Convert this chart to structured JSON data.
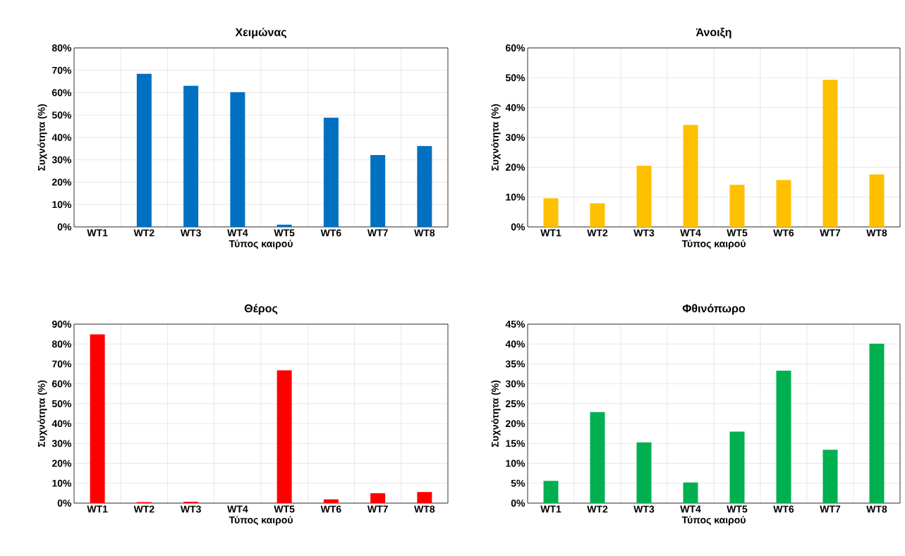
{
  "chart_data": [
    {
      "type": "bar",
      "title": "Χειμώνας",
      "xlabel": "Τύπος καιρού",
      "ylabel": "Συχνότητα (%)",
      "categories": [
        "WT1",
        "WT2",
        "WT3",
        "WT4",
        "WT5",
        "WT6",
        "WT7",
        "WT8"
      ],
      "color": "#0070c0",
      "values": [
        0,
        68.4,
        63.1,
        60.2,
        1.0,
        48.8,
        32.1,
        36.1
      ],
      "ylim": [
        0,
        80
      ],
      "yticks": [
        {
          "value": 0,
          "label": "0%"
        },
        {
          "value": 10,
          "label": "10%"
        },
        {
          "value": 20,
          "label": "20%"
        },
        {
          "value": 30,
          "label": "30%"
        },
        {
          "value": 40,
          "label": "40%"
        },
        {
          "value": 50,
          "label": "50%"
        },
        {
          "value": 60,
          "label": "60%"
        },
        {
          "value": 70,
          "label": "70%"
        },
        {
          "value": 80,
          "label": "80%"
        }
      ],
      "grid": true
    },
    {
      "type": "bar",
      "title": "Άνοιξη",
      "xlabel": "Τύπος καιρού",
      "ylabel": "Συχνότητα (%)",
      "categories": [
        "WT1",
        "WT2",
        "WT3",
        "WT4",
        "WT5",
        "WT6",
        "WT7",
        "WT8"
      ],
      "color": "#ffc000",
      "values": [
        9.6,
        7.9,
        20.5,
        34.2,
        14.1,
        15.7,
        49.3,
        17.6
      ],
      "ylim": [
        0,
        60
      ],
      "yticks": [
        {
          "value": 0,
          "label": "0%"
        },
        {
          "value": 10,
          "label": "10%"
        },
        {
          "value": 20,
          "label": "20%"
        },
        {
          "value": 30,
          "label": "30%"
        },
        {
          "value": 40,
          "label": "40%"
        },
        {
          "value": 50,
          "label": "50%"
        },
        {
          "value": 60,
          "label": "60%"
        }
      ],
      "grid": true
    },
    {
      "type": "bar",
      "title": "Θέρος",
      "xlabel": "Τύπος καιρού",
      "ylabel": "Συχνότητα (%)",
      "categories": [
        "WT1",
        "WT2",
        "WT3",
        "WT4",
        "WT5",
        "WT6",
        "WT7",
        "WT8"
      ],
      "color": "#ff0000",
      "values": [
        84.9,
        0.5,
        0.7,
        0,
        66.8,
        1.9,
        5.0,
        5.6
      ],
      "ylim": [
        0,
        90
      ],
      "yticks": [
        {
          "value": 0,
          "label": "0%"
        },
        {
          "value": 10,
          "label": "10%"
        },
        {
          "value": 20,
          "label": "20%"
        },
        {
          "value": 30,
          "label": "30%"
        },
        {
          "value": 40,
          "label": "40%"
        },
        {
          "value": 50,
          "label": "50%"
        },
        {
          "value": 60,
          "label": "60%"
        },
        {
          "value": 70,
          "label": "70%"
        },
        {
          "value": 80,
          "label": "80%"
        },
        {
          "value": 90,
          "label": "90%"
        }
      ],
      "grid": true
    },
    {
      "type": "bar",
      "title": "Φθινόπωρο",
      "xlabel": "Τύπος καιρού",
      "ylabel": "Συχνότητα (%)",
      "categories": [
        "WT1",
        "WT2",
        "WT3",
        "WT4",
        "WT5",
        "WT6",
        "WT7",
        "WT8"
      ],
      "color": "#00b050",
      "values": [
        5.6,
        22.9,
        15.3,
        5.2,
        18.0,
        33.3,
        13.4,
        40.1
      ],
      "ylim": [
        0,
        45
      ],
      "yticks": [
        {
          "value": 0,
          "label": "0%"
        },
        {
          "value": 5,
          "label": "5%"
        },
        {
          "value": 10,
          "label": "10%"
        },
        {
          "value": 15,
          "label": "15%"
        },
        {
          "value": 20,
          "label": "20%"
        },
        {
          "value": 25,
          "label": "25%"
        },
        {
          "value": 30,
          "label": "30%"
        },
        {
          "value": 35,
          "label": "35%"
        },
        {
          "value": 40,
          "label": "40%"
        },
        {
          "value": 45,
          "label": "45%"
        }
      ],
      "grid": true
    }
  ]
}
